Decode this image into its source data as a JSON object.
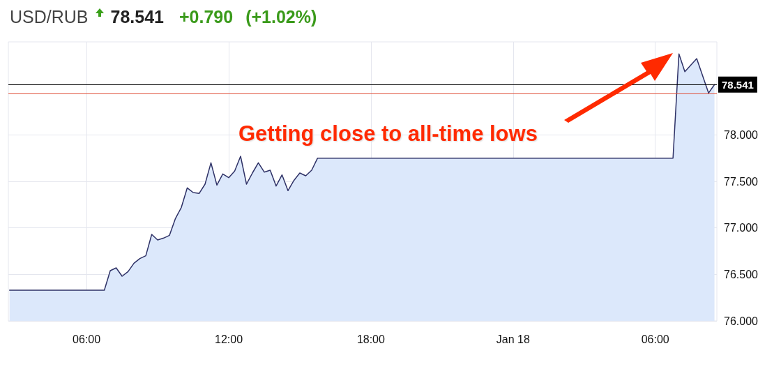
{
  "chart_data": {
    "type": "area",
    "title": "USD/RUB",
    "annotations": [
      "78.541",
      "+0.790",
      "(+1.02%)",
      "Getting close to all-time lows"
    ],
    "x": [
      "--01-17T02:45",
      "--01-17T06:45",
      "--01-17T07:00",
      "--01-17T07:15",
      "--01-17T07:30",
      "--01-17T07:45",
      "--01-17T08:00",
      "--01-17T08:15",
      "--01-17T08:30",
      "--01-17T08:45",
      "--01-17T09:00",
      "--01-17T09:15",
      "--01-17T09:30",
      "--01-17T09:45",
      "--01-17T10:00",
      "--01-17T10:15",
      "--01-17T10:30",
      "--01-17T10:45",
      "--01-17T11:00",
      "--01-17T11:15",
      "--01-17T11:30",
      "--01-17T11:45",
      "--01-17T12:00",
      "--01-17T12:15",
      "--01-17T12:30",
      "--01-17T12:45",
      "--01-17T13:00",
      "--01-17T13:15",
      "--01-17T13:30",
      "--01-17T13:45",
      "--01-17T14:00",
      "--01-17T14:15",
      "--01-17T14:30",
      "--01-17T14:45",
      "--01-17T15:00",
      "--01-17T15:15",
      "--01-17T15:30",
      "--01-17T15:45",
      "--01-17T16:00",
      "--01-18T06:45",
      "--01-18T07:00",
      "--01-18T07:15",
      "--01-18T07:45",
      "--01-18T08:15",
      "--01-18T08:30"
    ],
    "series": [
      {
        "color": "#2e3166",
        "values": [
          76.33,
          76.33,
          76.54,
          76.57,
          76.48,
          76.53,
          76.62,
          76.67,
          76.7,
          76.93,
          76.87,
          76.89,
          76.92,
          77.1,
          77.22,
          77.43,
          77.38,
          77.37,
          77.47,
          77.7,
          77.46,
          77.58,
          77.54,
          77.61,
          77.77,
          77.47,
          77.59,
          77.7,
          77.6,
          77.62,
          77.45,
          77.57,
          77.4,
          77.51,
          77.59,
          77.56,
          77.62,
          77.75,
          77.75,
          77.75,
          78.87,
          78.68,
          78.82,
          78.45,
          78.541
        ]
      }
    ],
    "xlim": [
      "--01-17T02:42",
      "--01-18T08:36"
    ],
    "xticks": [
      {
        "value": "--01-17T06:00",
        "label": "06:00"
      },
      {
        "value": "--01-17T12:00",
        "label": "12:00"
      },
      {
        "value": "--01-17T18:00",
        "label": "18:00"
      },
      {
        "value": "--01-18T00:00",
        "label": "Jan 18"
      },
      {
        "value": "--01-18T06:00",
        "label": "06:00"
      }
    ],
    "ylim": [
      76,
      79
    ],
    "yticks": [
      {
        "value": 76,
        "label": "76.000"
      },
      {
        "value": 76.5,
        "label": "76.500"
      },
      {
        "value": 77,
        "label": "77.000"
      },
      {
        "value": 77.5,
        "label": "77.500"
      },
      {
        "value": 78,
        "label": "78.000"
      }
    ],
    "ref_lines": [
      {
        "axis": "y",
        "value": 78.541,
        "label": "78.541",
        "color": "#000000"
      },
      {
        "axis": "y",
        "value": 78.44,
        "color": "#e0503c"
      }
    ],
    "grid": true,
    "marker": "none",
    "line_style": "solid"
  }
}
